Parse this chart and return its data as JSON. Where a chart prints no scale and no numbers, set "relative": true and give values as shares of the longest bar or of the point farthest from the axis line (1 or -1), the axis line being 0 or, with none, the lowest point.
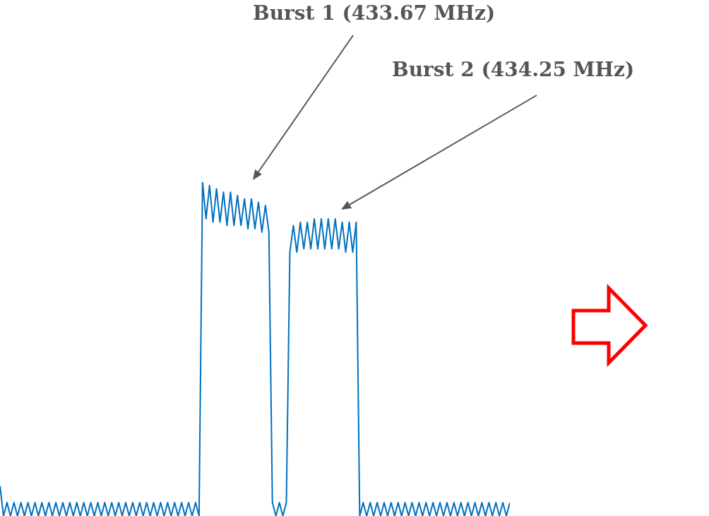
{
  "chart_data": {
    "type": "line",
    "relative": true,
    "legend": false,
    "marker": "none",
    "line_style": "solid",
    "annotations": [
      "Burst 1 (433.67 MHz)",
      "Burst 2 (434.25 MHz)"
    ],
    "categories": [
      null,
      null,
      null,
      null,
      null,
      null,
      null,
      null,
      null,
      null,
      null,
      null,
      null,
      null,
      null,
      null,
      null,
      null,
      null,
      null,
      null,
      null,
      null,
      null,
      null,
      null,
      null,
      null,
      null,
      null,
      null,
      null,
      null,
      null,
      null,
      null,
      null,
      null,
      null,
      null,
      null,
      null,
      null,
      null,
      null,
      null,
      null,
      null,
      null,
      null,
      null,
      null,
      null,
      null,
      null,
      null,
      null,
      null,
      null,
      null,
      null,
      null,
      null,
      null,
      null,
      null,
      null,
      null,
      null,
      null,
      null,
      null,
      null,
      null,
      null,
      null,
      null,
      null,
      null,
      null,
      null,
      null,
      null,
      null,
      null,
      null,
      null,
      null,
      null,
      null,
      null,
      null,
      null,
      null,
      null,
      null,
      null,
      null,
      null,
      null,
      null,
      null,
      null,
      null,
      null,
      null,
      null,
      null,
      null,
      null,
      null,
      null,
      null,
      null,
      null,
      null,
      null,
      null,
      null,
      null,
      null,
      null,
      null,
      null,
      null,
      null,
      null,
      null,
      null,
      null,
      null,
      null,
      null,
      null,
      null,
      null,
      null,
      null,
      null,
      null,
      null,
      null,
      null,
      null,
      null,
      null,
      null
    ],
    "series": [
      {
        "color": "#0070c0",
        "values": [
          0.09,
          0,
          0.04,
          0,
          0.04,
          0,
          0.04,
          0,
          0.04,
          0,
          0.04,
          0,
          0.04,
          0,
          0.04,
          0,
          0.04,
          0,
          0.04,
          0,
          0.04,
          0,
          0.04,
          0,
          0.04,
          0,
          0.04,
          0,
          0.04,
          0,
          0.04,
          0,
          0.04,
          0,
          0.04,
          0,
          0.04,
          0,
          0.04,
          0,
          0.04,
          0,
          0.04,
          0,
          0.04,
          0,
          0.04,
          0,
          0.04,
          0,
          0.04,
          0,
          0.04,
          0,
          0.04,
          0,
          0.04,
          0,
          1.0,
          0.89,
          0.99,
          0.88,
          0.98,
          0.88,
          0.97,
          0.87,
          0.97,
          0.87,
          0.96,
          0.87,
          0.95,
          0.86,
          0.95,
          0.86,
          0.94,
          0.85,
          0.93,
          0.85,
          0.04,
          0,
          0.04,
          0,
          0.04,
          0.79,
          0.87,
          0.79,
          0.88,
          0.8,
          0.88,
          0.8,
          0.89,
          0.8,
          0.89,
          0.8,
          0.89,
          0.8,
          0.89,
          0.8,
          0.88,
          0.79,
          0.88,
          0.79,
          0.88,
          0,
          0.04,
          0,
          0.04,
          0,
          0.04,
          0,
          0.04,
          0,
          0.04,
          0,
          0.04,
          0,
          0.04,
          0,
          0.04,
          0,
          0.04,
          0,
          0.04,
          0,
          0.04,
          0,
          0.04,
          0,
          0.04,
          0,
          0.04,
          0,
          0.04,
          0,
          0.04,
          0,
          0.04,
          0,
          0.04,
          0,
          0.04,
          0,
          0.04,
          0,
          0.04,
          0,
          0.04
        ]
      }
    ]
  }
}
